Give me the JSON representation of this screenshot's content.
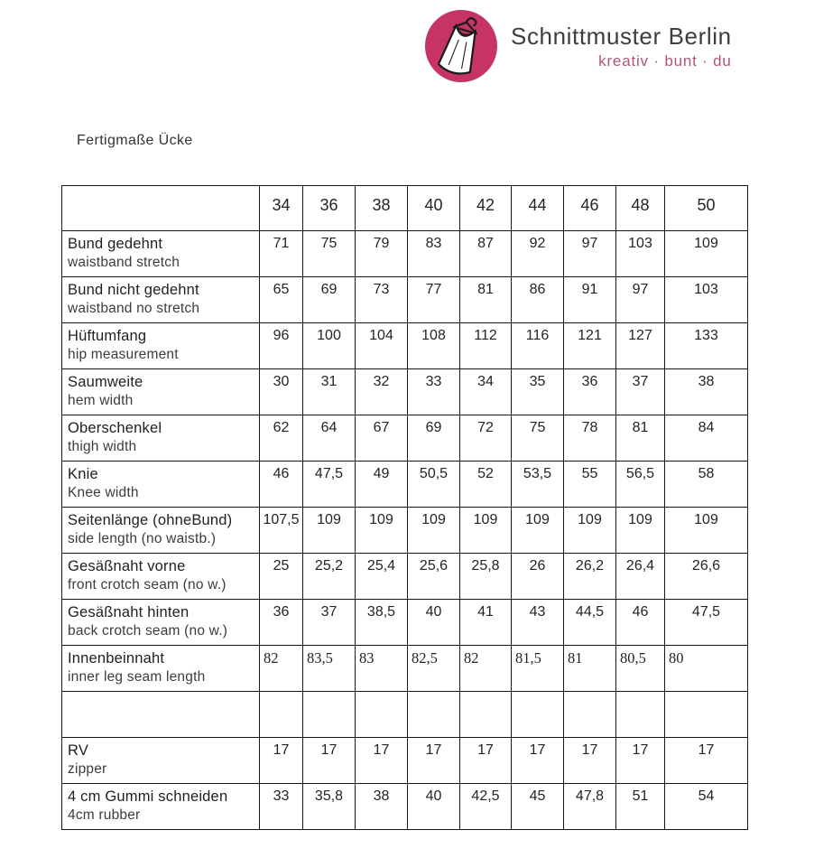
{
  "logo": {
    "brand": "Schnittmuster Berlin",
    "tagline": "kreativ · bunt · du"
  },
  "colors": {
    "logo_circle": "#c53462",
    "tagline": "#b05677",
    "brand_text": "#3d3d3d",
    "table_border": "#161616"
  },
  "page": {
    "title": "Fertigmaße Ücke"
  },
  "table": {
    "sizes": [
      "34",
      "36",
      "38",
      "40",
      "42",
      "44",
      "46",
      "48",
      "50"
    ],
    "rows": [
      {
        "label_de": "Bund gedehnt",
        "label_en": "waistband stretch",
        "values": [
          "71",
          "75",
          "79",
          "83",
          "87",
          "92",
          "97",
          "103",
          "109"
        ]
      },
      {
        "label_de": "Bund nicht gedehnt",
        "label_en": "waistband no stretch",
        "values": [
          "65",
          "69",
          "73",
          "77",
          "81",
          "86",
          "91",
          "97",
          "103"
        ]
      },
      {
        "label_de": "Hüftumfang",
        "label_en": "hip measurement",
        "values": [
          "96",
          "100",
          "104",
          "108",
          "112",
          "116",
          "121",
          "127",
          "133"
        ]
      },
      {
        "label_de": "Saumweite",
        "label_en": "hem width",
        "values": [
          "30",
          "31",
          "32",
          "33",
          "34",
          "35",
          "36",
          "37",
          "38"
        ]
      },
      {
        "label_de": "Oberschenkel",
        "label_en": "thigh width",
        "values": [
          "62",
          "64",
          "67",
          "69",
          "72",
          "75",
          "78",
          "81",
          "84"
        ]
      },
      {
        "label_de": "Knie",
        "label_en": "Knee width",
        "values": [
          "46",
          "47,5",
          "49",
          "50,5",
          "52",
          "53,5",
          "55",
          "56,5",
          "58"
        ]
      },
      {
        "label_de": "Seitenlänge (ohneBund)",
        "label_en": "side length (no waistb.)",
        "values": [
          "107,5",
          "109",
          "109",
          "109",
          "109",
          "109",
          "109",
          "109",
          "109"
        ]
      },
      {
        "label_de": "Gesäßnaht vorne",
        "label_en": "front crotch seam (no w.)",
        "values": [
          "25",
          "25,2",
          "25,4",
          "25,6",
          "25,8",
          "26",
          "26,2",
          "26,4",
          "26,6"
        ]
      },
      {
        "label_de": "Gesäßnaht hinten",
        "label_en": "back crotch seam (no w.)",
        "values": [
          "36",
          "37",
          "38,5",
          "40",
          "41",
          "43",
          "44,5",
          "46",
          "47,5"
        ]
      },
      {
        "label_de": "Innenbeinnaht",
        "label_en": "inner leg seam length",
        "style": "serif-left",
        "values": [
          "82",
          "83,5",
          "83",
          "82,5",
          "82",
          "81,5",
          "81",
          "80,5",
          "80"
        ]
      },
      {
        "label_de": "",
        "label_en": "",
        "style": "empty",
        "values": [
          "",
          "",
          "",
          "",
          "",
          "",
          "",
          "",
          ""
        ]
      },
      {
        "label_de": "RV",
        "label_en": "zipper",
        "values": [
          "17",
          "17",
          "17",
          "17",
          "17",
          "17",
          "17",
          "17",
          "17"
        ]
      },
      {
        "label_de": "4 cm Gummi schneiden",
        "label_en": "4cm rubber",
        "values": [
          "33",
          "35,8",
          "38",
          "40",
          "42,5",
          "45",
          "47,8",
          "51",
          "54"
        ]
      }
    ]
  }
}
